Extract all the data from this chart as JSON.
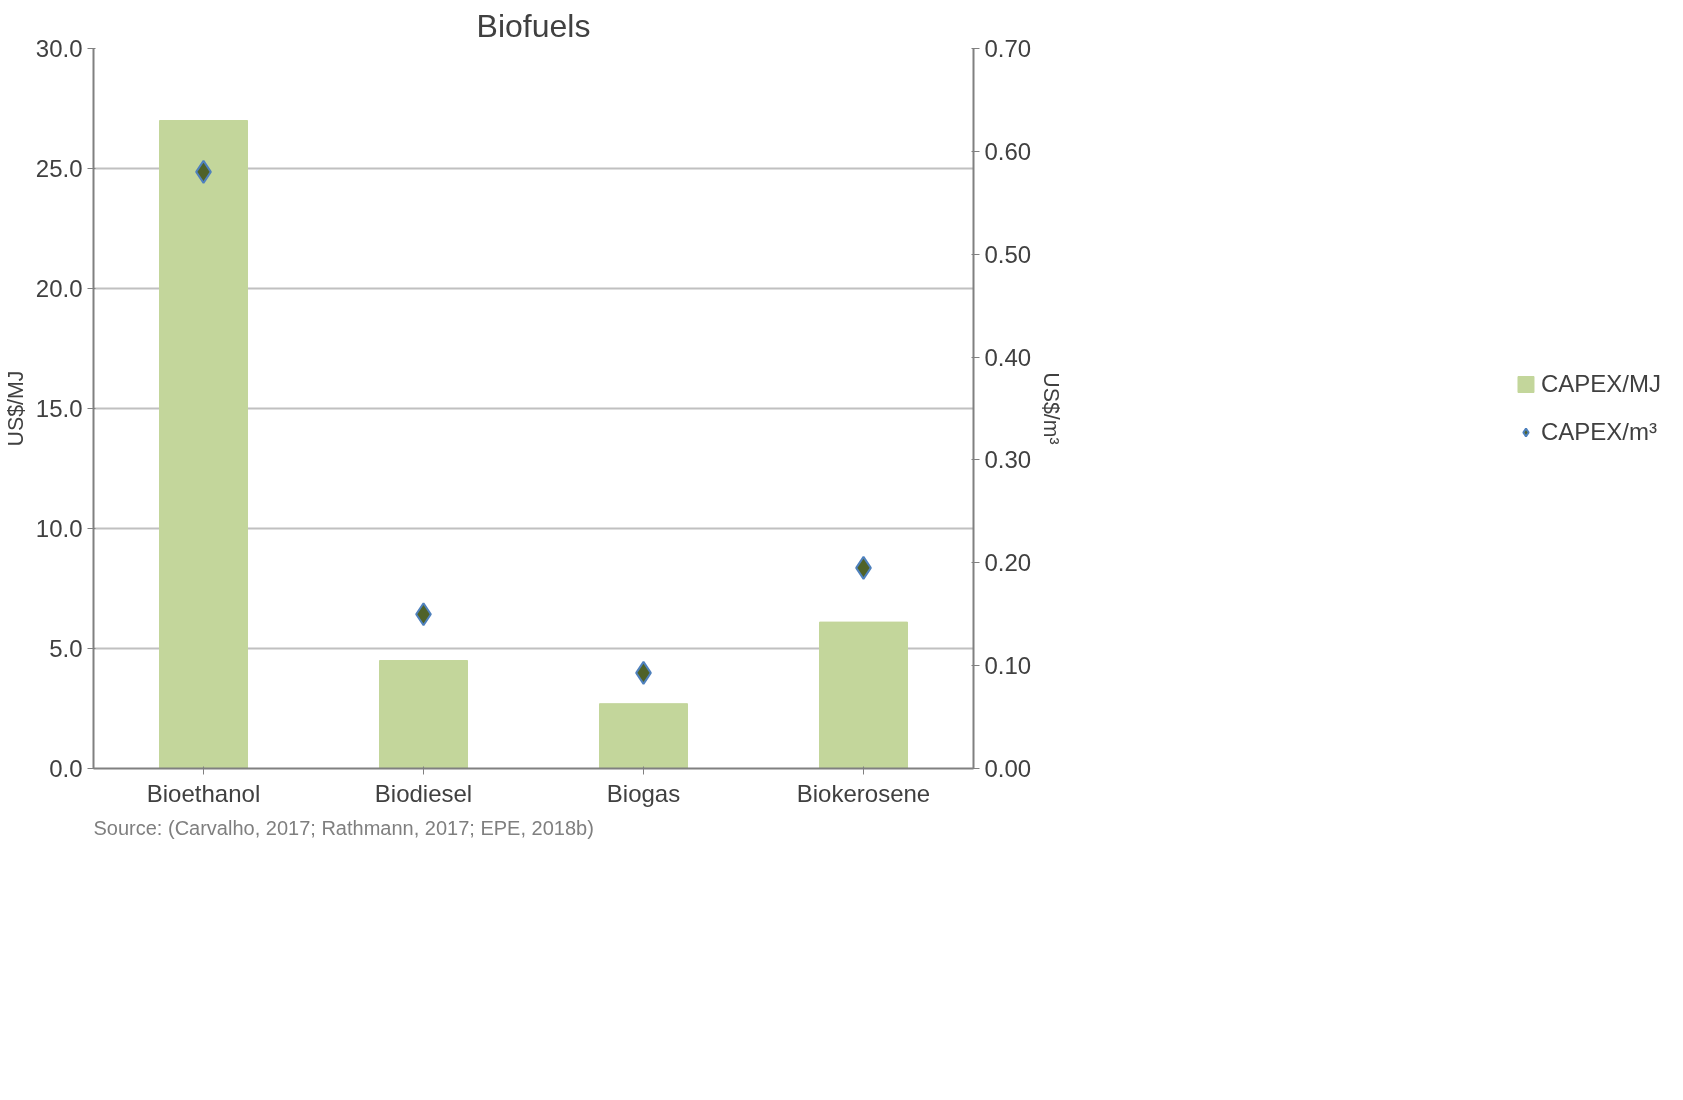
{
  "chart_data": {
    "type": "bar",
    "title": "Biofuels",
    "ylabel": "US$/MJ",
    "y2label": "US$/m³",
    "categories": [
      "Bioethanol",
      "Biodiesel",
      "Biogas",
      "Biokerosene"
    ],
    "series": [
      {
        "name": "CAPEX/MJ",
        "color": "#c3d69b",
        "values": [
          27.0,
          4.5,
          2.7,
          6.1
        ]
      },
      {
        "name": "CAPEX/m³",
        "type": "scatter",
        "axis": "y2",
        "marker": "diamond",
        "color": "#4f6228",
        "values": [
          0.58,
          0.15,
          0.093,
          0.195
        ]
      }
    ],
    "ylim": [
      0,
      30
    ],
    "yticks": [
      {
        "value": 0,
        "label": "0.0"
      },
      {
        "value": 5,
        "label": "5.0"
      },
      {
        "value": 10,
        "label": "10.0"
      },
      {
        "value": 15,
        "label": "15.0"
      },
      {
        "value": 20,
        "label": "20.0"
      },
      {
        "value": 25,
        "label": "25.0"
      },
      {
        "value": 30,
        "label": "30.0"
      }
    ],
    "y2lim": [
      0,
      0.7
    ],
    "y2ticks": [
      {
        "value": 0,
        "label": "0.00"
      },
      {
        "value": 0.1,
        "label": "0.10"
      },
      {
        "value": 0.2,
        "label": "0.20"
      },
      {
        "value": 0.3,
        "label": "0.30"
      },
      {
        "value": 0.4,
        "label": "0.40"
      },
      {
        "value": 0.5,
        "label": "0.50"
      },
      {
        "value": 0.6,
        "label": "0.60"
      },
      {
        "value": 0.7,
        "label": "0.70"
      }
    ],
    "grid": "y",
    "legend": "right",
    "annotations": [
      "Source: (Carvalho, 2017; Rathmann, 2017; EPE, 2018b)"
    ]
  }
}
